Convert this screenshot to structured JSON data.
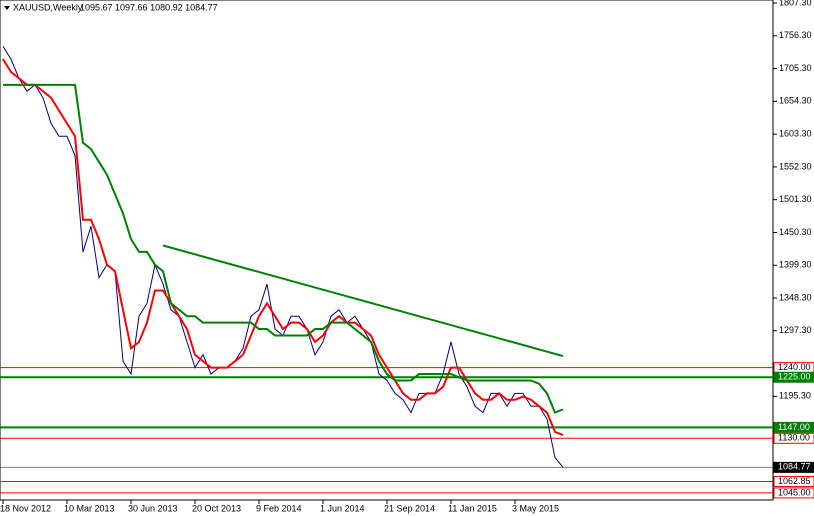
{
  "chart_data": {
    "type": "line",
    "title": "XAUUSD,Weekly",
    "ohlc": "1095.67 1097.66 1080.92 1084.77",
    "categories": [
      "18 Nov 2012",
      null,
      null,
      null,
      null,
      null,
      null,
      null,
      "10 Mar 2013",
      null,
      null,
      null,
      null,
      null,
      null,
      null,
      "30 Jun 2013",
      null,
      null,
      null,
      null,
      null,
      null,
      null,
      "20 Oct 2013",
      null,
      null,
      null,
      null,
      null,
      null,
      null,
      "9 Feb 2014",
      null,
      null,
      null,
      null,
      null,
      null,
      null,
      "1 Jun 2014",
      null,
      null,
      null,
      null,
      null,
      null,
      null,
      "21 Sep 2014",
      null,
      null,
      null,
      null,
      null,
      null,
      null,
      "11 Jan 2015",
      null,
      null,
      null,
      null,
      null,
      null,
      null,
      "3 May 2015",
      null,
      null,
      null,
      null,
      null,
      null
    ],
    "series": [
      {
        "color": "#000080",
        "values": [
          1740,
          1720,
          1690,
          1670,
          1680,
          1660,
          1620,
          1600,
          1600,
          1570,
          1420,
          1460,
          1380,
          1400,
          1390,
          1250,
          1230,
          1320,
          1340,
          1400,
          1370,
          1330,
          1320,
          1280,
          1240,
          1260,
          1230,
          1240,
          1240,
          1250,
          1270,
          1320,
          1330,
          1370,
          1300,
          1290,
          1320,
          1320,
          1300,
          1260,
          1280,
          1320,
          1330,
          1310,
          1320,
          1300,
          1280,
          1230,
          1220,
          1200,
          1190,
          1170,
          1200,
          1200,
          1200,
          1230,
          1280,
          1230,
          1210,
          1180,
          1170,
          1200,
          1200,
          1180,
          1200,
          1200,
          1180,
          1180,
          1160,
          1100,
          1084.77
        ]
      },
      {
        "color": "#ff0000",
        "values": [
          1720,
          1700,
          1690,
          1680,
          1680,
          1670,
          1660,
          1640,
          1620,
          1600,
          1470,
          1470,
          1440,
          1400,
          1390,
          1330,
          1270,
          1280,
          1310,
          1360,
          1360,
          1340,
          1320,
          1300,
          1260,
          1250,
          1240,
          1240,
          1240,
          1250,
          1260,
          1290,
          1320,
          1340,
          1320,
          1300,
          1310,
          1310,
          1300,
          1280,
          1290,
          1310,
          1320,
          1310,
          1310,
          1300,
          1290,
          1260,
          1240,
          1220,
          1200,
          1190,
          1190,
          1200,
          1200,
          1210,
          1240,
          1240,
          1220,
          1200,
          1190,
          1190,
          1200,
          1190,
          1190,
          1195,
          1190,
          1180,
          1170,
          1140,
          1135
        ]
      },
      {
        "color": "#008000",
        "values": [
          1680,
          1680,
          1680,
          1680,
          1680,
          1680,
          1680,
          1680,
          1680,
          1680,
          1590,
          1580,
          1560,
          1540,
          1510,
          1480,
          1440,
          1420,
          1420,
          1400,
          1390,
          1340,
          1330,
          1320,
          1320,
          1310,
          1310,
          1310,
          1310,
          1310,
          1310,
          1310,
          1300,
          1300,
          1290,
          1290,
          1290,
          1290,
          1290,
          1300,
          1300,
          1310,
          1310,
          1310,
          1300,
          1290,
          1280,
          1250,
          1230,
          1220,
          1220,
          1220,
          1230,
          1230,
          1230,
          1230,
          1230,
          1225,
          1220,
          1220,
          1220,
          1220,
          1220,
          1220,
          1220,
          1220,
          1220,
          1215,
          1200,
          1170,
          1175
        ]
      }
    ],
    "trendline": {
      "color": "#008000",
      "points": [
        {
          "index": 20,
          "value": 1430
        },
        {
          "index": 70,
          "value": 1258
        }
      ]
    },
    "levels": [
      {
        "value": 1240,
        "label": "1240.00",
        "color": "#ff0000",
        "style": "outline"
      },
      {
        "value": 1225,
        "label": "1225.00",
        "color": "#008000",
        "style": "filled"
      },
      {
        "value": 1147,
        "label": "1147.00",
        "color": "#008000",
        "style": "filled"
      },
      {
        "value": 1130,
        "label": "1130.00",
        "color": "#ff0000",
        "style": "outline"
      },
      {
        "value": 1084.77,
        "label": "1084.77",
        "color": "#000000",
        "style": "filled"
      },
      {
        "value": 1062.85,
        "label": "1062.85",
        "color": "#ff0000",
        "style": "outline"
      },
      {
        "value": 1045,
        "label": "1045.00",
        "color": "#ff0000",
        "style": "outline"
      }
    ],
    "ylim": [
      1034,
      1812
    ],
    "yticks": [
      {
        "value": 1807.3,
        "label": "1807.30"
      },
      {
        "value": 1756.3,
        "label": "1756.30"
      },
      {
        "value": 1705.3,
        "label": "1705.30"
      },
      {
        "value": 1654.3,
        "label": "1654.30"
      },
      {
        "value": 1603.3,
        "label": "1603.30"
      },
      {
        "value": 1552.3,
        "label": "1552.30"
      },
      {
        "value": 1501.3,
        "label": "1501.30"
      },
      {
        "value": 1450.3,
        "label": "1450.30"
      },
      {
        "value": 1399.3,
        "label": "1399.30"
      },
      {
        "value": 1348.3,
        "label": "1348.30"
      },
      {
        "value": 1297.3,
        "label": "1297.30"
      },
      {
        "value": 1195.3,
        "label": "1195.30"
      }
    ]
  }
}
